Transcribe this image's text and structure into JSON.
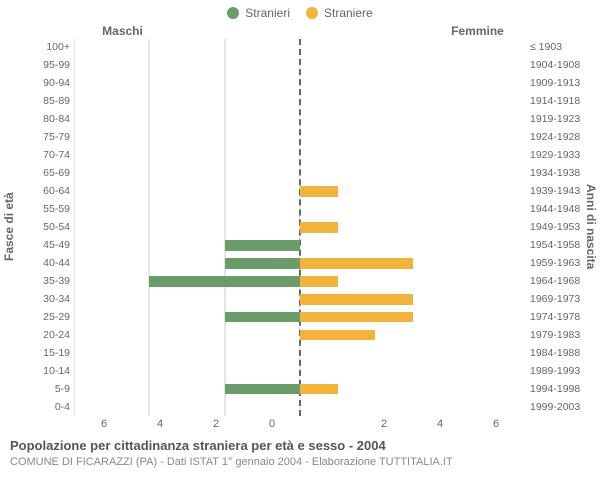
{
  "legend": {
    "male": {
      "label": "Stranieri",
      "color": "#6a9c6a"
    },
    "female": {
      "label": "Straniere",
      "color": "#f1b33b"
    }
  },
  "headers": {
    "male": "Maschi",
    "female": "Femmine"
  },
  "axis_labels": {
    "left": "Fasce di età",
    "right": "Anni di nascita"
  },
  "x": {
    "max": 6,
    "ticks_left": [
      6,
      4,
      2,
      0
    ],
    "ticks_right": [
      0,
      2,
      4,
      6
    ]
  },
  "grid_color": "#e6e6e6",
  "centerline_color": "#666666",
  "background_color": "#ffffff",
  "title": "Popolazione per cittadinanza straniera per età e sesso - 2004",
  "subtitle": "COMUNE DI FICARAZZI (PA) - Dati ISTAT 1° gennaio 2004 - Elaborazione TUTTITALIA.IT",
  "rows": [
    {
      "age": "100+",
      "birth": "≤ 1903",
      "m": 0,
      "f": 0
    },
    {
      "age": "95-99",
      "birth": "1904-1908",
      "m": 0,
      "f": 0
    },
    {
      "age": "90-94",
      "birth": "1909-1913",
      "m": 0,
      "f": 0
    },
    {
      "age": "85-89",
      "birth": "1914-1918",
      "m": 0,
      "f": 0
    },
    {
      "age": "80-84",
      "birth": "1919-1923",
      "m": 0,
      "f": 0
    },
    {
      "age": "75-79",
      "birth": "1924-1928",
      "m": 0,
      "f": 0
    },
    {
      "age": "70-74",
      "birth": "1929-1933",
      "m": 0,
      "f": 0
    },
    {
      "age": "65-69",
      "birth": "1934-1938",
      "m": 0,
      "f": 0
    },
    {
      "age": "60-64",
      "birth": "1939-1943",
      "m": 0,
      "f": 1
    },
    {
      "age": "55-59",
      "birth": "1944-1948",
      "m": 0,
      "f": 0
    },
    {
      "age": "50-54",
      "birth": "1949-1953",
      "m": 0,
      "f": 1
    },
    {
      "age": "45-49",
      "birth": "1954-1958",
      "m": 2,
      "f": 0
    },
    {
      "age": "40-44",
      "birth": "1959-1963",
      "m": 2,
      "f": 3
    },
    {
      "age": "35-39",
      "birth": "1964-1968",
      "m": 4,
      "f": 1
    },
    {
      "age": "30-34",
      "birth": "1969-1973",
      "m": 0,
      "f": 3
    },
    {
      "age": "25-29",
      "birth": "1974-1978",
      "m": 2,
      "f": 3
    },
    {
      "age": "20-24",
      "birth": "1979-1983",
      "m": 0,
      "f": 2
    },
    {
      "age": "15-19",
      "birth": "1984-1988",
      "m": 0,
      "f": 0
    },
    {
      "age": "10-14",
      "birth": "1989-1993",
      "m": 0,
      "f": 0
    },
    {
      "age": "5-9",
      "birth": "1994-1998",
      "m": 2,
      "f": 1
    },
    {
      "age": "0-4",
      "birth": "1999-2003",
      "m": 0,
      "f": 0
    }
  ]
}
